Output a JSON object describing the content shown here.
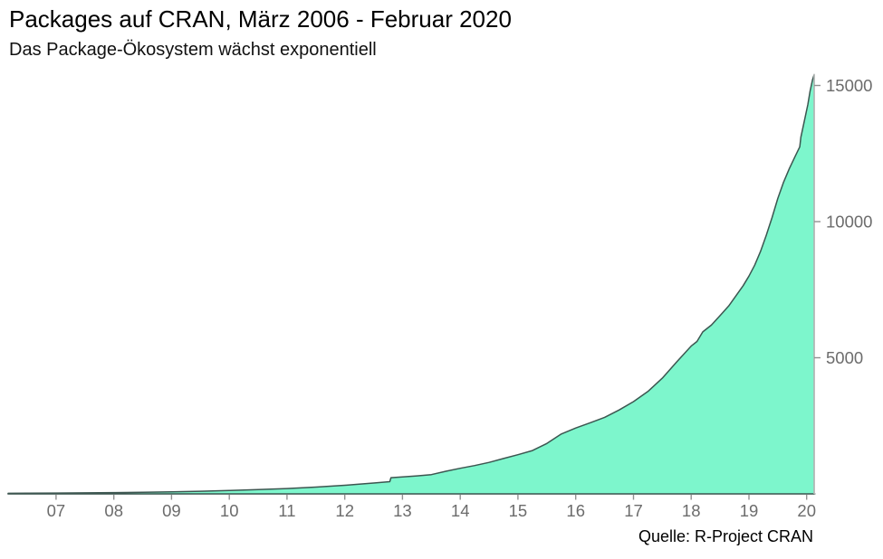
{
  "header": {
    "title": "Packages auf CRAN, März 2006 - Februar 2020",
    "subtitle": "Das Package-Ökosystem wächst exponentiell"
  },
  "chart_data": {
    "type": "area",
    "title": "Packages auf CRAN, März 2006 - Februar 2020",
    "subtitle": "Das Package-Ökosystem wächst exponentiell",
    "caption": "Quelle: R-Project CRAN",
    "xlabel": "",
    "ylabel": "",
    "grid": "off",
    "legend": "none",
    "y_axis_side": "right",
    "x_range": [
      2006.17,
      2020.13
    ],
    "y_range": [
      0,
      15500
    ],
    "x_ticks": {
      "years": [
        2007,
        2008,
        2009,
        2010,
        2011,
        2012,
        2013,
        2014,
        2015,
        2016,
        2017,
        2018,
        2019,
        2020
      ],
      "labels": [
        "07",
        "08",
        "09",
        "10",
        "11",
        "12",
        "13",
        "14",
        "15",
        "16",
        "17",
        "18",
        "19",
        "20"
      ]
    },
    "y_ticks": {
      "values": [
        5000,
        10000,
        15000
      ],
      "labels": [
        "5000",
        "10000",
        "15000"
      ]
    },
    "series": [
      {
        "name": "Packages auf CRAN",
        "points": [
          [
            2006.17,
            20
          ],
          [
            2006.5,
            24
          ],
          [
            2007.0,
            30
          ],
          [
            2007.5,
            38
          ],
          [
            2008.0,
            48
          ],
          [
            2008.5,
            61
          ],
          [
            2009.0,
            77
          ],
          [
            2009.5,
            97
          ],
          [
            2010.0,
            123
          ],
          [
            2010.5,
            156
          ],
          [
            2011.0,
            197
          ],
          [
            2011.5,
            250
          ],
          [
            2012.0,
            316
          ],
          [
            2012.25,
            356
          ],
          [
            2012.5,
            400
          ],
          [
            2012.78,
            448
          ],
          [
            2012.8,
            596
          ],
          [
            2013.0,
            622
          ],
          [
            2013.25,
            662
          ],
          [
            2013.5,
            707
          ],
          [
            2013.75,
            830
          ],
          [
            2014.0,
            940
          ],
          [
            2014.25,
            1040
          ],
          [
            2014.5,
            1155
          ],
          [
            2014.75,
            1300
          ],
          [
            2015.0,
            1440
          ],
          [
            2015.25,
            1590
          ],
          [
            2015.5,
            1850
          ],
          [
            2015.75,
            2200
          ],
          [
            2016.0,
            2420
          ],
          [
            2016.25,
            2610
          ],
          [
            2016.5,
            2810
          ],
          [
            2016.75,
            3080
          ],
          [
            2017.0,
            3390
          ],
          [
            2017.25,
            3760
          ],
          [
            2017.5,
            4250
          ],
          [
            2017.75,
            4850
          ],
          [
            2018.0,
            5430
          ],
          [
            2018.1,
            5600
          ],
          [
            2018.2,
            5950
          ],
          [
            2018.35,
            6200
          ],
          [
            2018.5,
            6550
          ],
          [
            2018.65,
            6900
          ],
          [
            2018.8,
            7350
          ],
          [
            2018.9,
            7650
          ],
          [
            2019.0,
            8000
          ],
          [
            2019.1,
            8400
          ],
          [
            2019.2,
            8900
          ],
          [
            2019.3,
            9500
          ],
          [
            2019.4,
            10150
          ],
          [
            2019.5,
            10850
          ],
          [
            2019.6,
            11450
          ],
          [
            2019.7,
            11950
          ],
          [
            2019.8,
            12400
          ],
          [
            2019.88,
            12750
          ],
          [
            2019.9,
            13100
          ],
          [
            2019.97,
            13800
          ],
          [
            2020.02,
            14300
          ],
          [
            2020.06,
            14800
          ],
          [
            2020.1,
            15200
          ],
          [
            2020.13,
            15400
          ]
        ]
      }
    ],
    "colors": {
      "area_fill": "#7DF6CC",
      "area_stroke": "#3C5650",
      "axis_line": "#C9C9C9",
      "tick_mark": "#919191",
      "tick_label": "#6C6C6C",
      "text": "#000000"
    }
  }
}
